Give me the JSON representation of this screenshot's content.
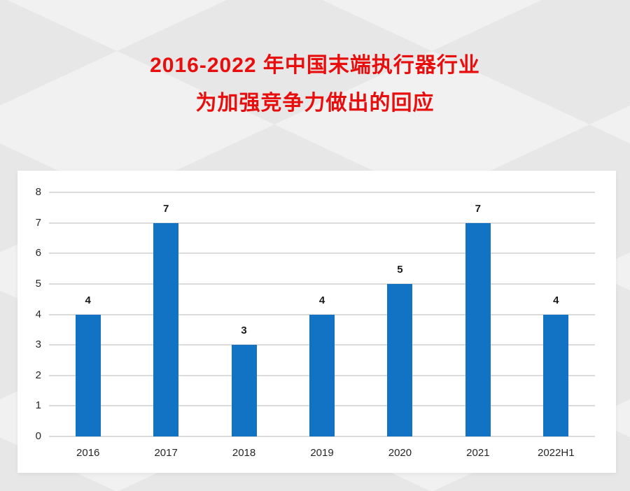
{
  "title": {
    "line1": "2016-2022 年中国末端执行器行业",
    "line2": "为加强竞争力做出的回应"
  },
  "colors": {
    "title_red": "#e80e0e",
    "bar_blue": "#1273c5",
    "gridline": "#dbdbdb",
    "axis_text": "#262626",
    "panel_background": "#ffffff",
    "page_background_dark": "#e7e7e7",
    "page_background_light": "#f1f1f1"
  },
  "chart_data": {
    "type": "bar",
    "title": "2016-2022年中国末端执行器行业为加强竞争力做出的回应",
    "categories": [
      "2016",
      "2017",
      "2018",
      "2019",
      "2020",
      "2021",
      "2022H1"
    ],
    "values": [
      4,
      7,
      3,
      4,
      5,
      7,
      4
    ],
    "xlabel": "",
    "ylabel": "",
    "ylim": [
      0,
      8
    ],
    "yticks": [
      0,
      1,
      2,
      3,
      4,
      5,
      6,
      7,
      8
    ],
    "grid": true,
    "legend_position": "none",
    "data_labels": true
  }
}
